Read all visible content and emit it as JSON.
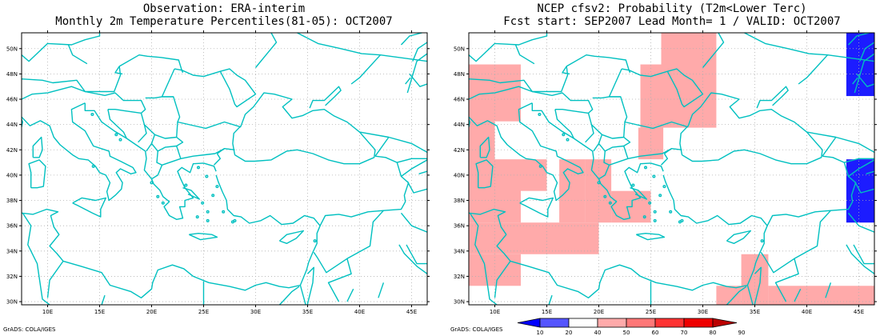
{
  "left_panel": {
    "title1": "Observation: ERA-interim",
    "title2": "Monthly 2m Temperature Percentiles(81-05): OCT2007"
  },
  "right_panel": {
    "title1": "NCEP cfsv2: Probability (T2m<Lower Terc)",
    "title2": "Fcst start: SEP2007  Lead Month= 1 / VALID: OCT2007"
  },
  "credit": "GrADS: COLA/IGES",
  "map_axes": {
    "x_ticks": [
      "10E",
      "15E",
      "20E",
      "25E",
      "30E",
      "35E",
      "40E",
      "45E"
    ],
    "y_ticks": [
      "30N",
      "32N",
      "34N",
      "36N",
      "38N",
      "40N",
      "42N",
      "44N",
      "46N",
      "48N",
      "50N"
    ],
    "lon_range": [
      7.5,
      46.5
    ],
    "lat_range": [
      29.75,
      51.25
    ]
  },
  "colorbar": {
    "labels": [
      "10",
      "20",
      "40",
      "50",
      "60",
      "70",
      "80",
      "90"
    ],
    "colors": [
      "#0000ff",
      "#5555ff",
      "#ffffff",
      "#ffaaaa",
      "#ff7777",
      "#ff3333",
      "#ee0000",
      "#bb0000"
    ]
  },
  "colors": {
    "coastline": "#00c0c0",
    "above_terc": "#ffaaaa",
    "low_prob": "#1c1cff"
  },
  "prob_cells": {
    "pink": [
      [
        7.5,
        48.75,
        12.5,
        44.25
      ],
      [
        7.5,
        44.25,
        10.0,
        36.25
      ],
      [
        10.0,
        41.25,
        12.5,
        36.25
      ],
      [
        12.5,
        41.25,
        15.0,
        38.75
      ],
      [
        16.2,
        41.25,
        18.7,
        36.25
      ],
      [
        18.7,
        41.25,
        20.0,
        36.25
      ],
      [
        20.0,
        41.25,
        21.2,
        36.25
      ],
      [
        21.2,
        38.75,
        25.0,
        36.25
      ],
      [
        7.5,
        36.25,
        20.0,
        33.75
      ],
      [
        7.5,
        33.75,
        12.5,
        31.25
      ],
      [
        24.0,
        48.75,
        26.0,
        43.75
      ],
      [
        26.0,
        51.25,
        31.3,
        43.75
      ],
      [
        23.8,
        43.75,
        26.2,
        41.25
      ],
      [
        31.3,
        31.25,
        33.7,
        29.75
      ],
      [
        33.7,
        33.75,
        36.3,
        29.75
      ],
      [
        36.3,
        31.25,
        46.5,
        29.75
      ]
    ],
    "blue": [
      [
        43.8,
        51.25,
        46.5,
        46.25
      ],
      [
        43.8,
        41.25,
        46.5,
        36.25
      ]
    ]
  }
}
